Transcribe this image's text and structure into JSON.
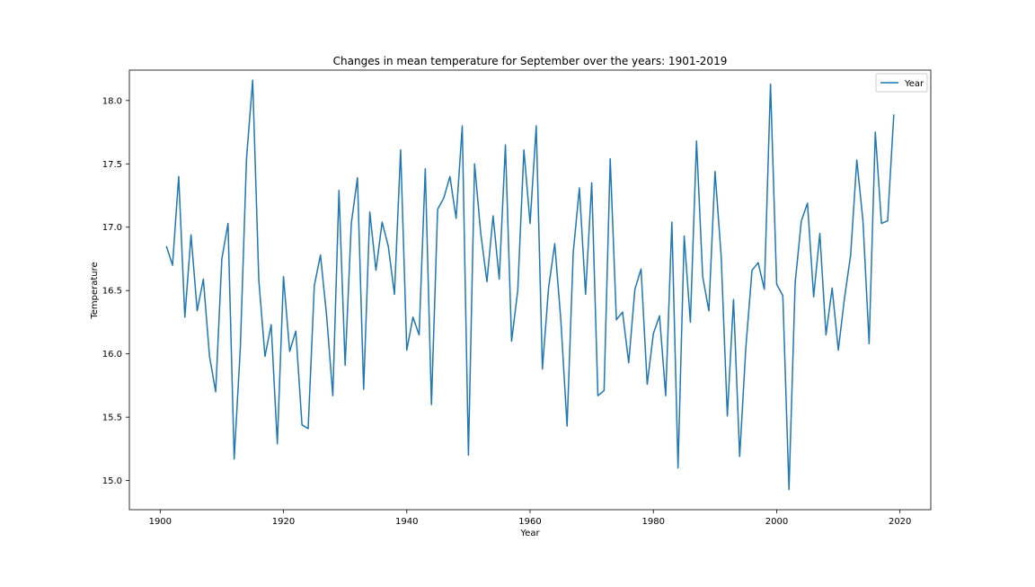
{
  "chart_data": {
    "type": "line",
    "title": "Changes in mean temperature for September over the years: 1901-2019",
    "xlabel": "Year",
    "ylabel": "Temperature",
    "xlim": [
      1895,
      2025
    ],
    "ylim": [
      14.77,
      18.24
    ],
    "xticks": [
      1900,
      1920,
      1940,
      1960,
      1980,
      2000,
      2020
    ],
    "xtick_labels": [
      "1900",
      "1920",
      "1940",
      "1960",
      "1980",
      "2000",
      "2020"
    ],
    "yticks": [
      15.0,
      15.5,
      16.0,
      16.5,
      17.0,
      17.5,
      18.0
    ],
    "ytick_labels": [
      "15.0",
      "15.5",
      "16.0",
      "16.5",
      "17.0",
      "17.5",
      "18.0"
    ],
    "grid": false,
    "legend_position": "top-right",
    "series": [
      {
        "name": "Year",
        "color": "#1f77b4",
        "x": [
          1901,
          1902,
          1903,
          1904,
          1905,
          1906,
          1907,
          1908,
          1909,
          1910,
          1911,
          1912,
          1913,
          1914,
          1915,
          1916,
          1917,
          1918,
          1919,
          1920,
          1921,
          1922,
          1923,
          1924,
          1925,
          1926,
          1927,
          1928,
          1929,
          1930,
          1931,
          1932,
          1933,
          1934,
          1935,
          1936,
          1937,
          1938,
          1939,
          1940,
          1941,
          1942,
          1943,
          1944,
          1945,
          1946,
          1947,
          1948,
          1949,
          1950,
          1951,
          1952,
          1953,
          1954,
          1955,
          1956,
          1957,
          1958,
          1959,
          1960,
          1961,
          1962,
          1963,
          1964,
          1965,
          1966,
          1967,
          1968,
          1969,
          1970,
          1971,
          1972,
          1973,
          1974,
          1975,
          1976,
          1977,
          1978,
          1979,
          1980,
          1981,
          1982,
          1983,
          1984,
          1985,
          1986,
          1987,
          1988,
          1989,
          1990,
          1991,
          1992,
          1993,
          1994,
          1995,
          1996,
          1997,
          1998,
          1999,
          2000,
          2001,
          2002,
          2003,
          2004,
          2005,
          2006,
          2007,
          2008,
          2009,
          2010,
          2011,
          2012,
          2013,
          2014,
          2015,
          2016,
          2017,
          2018,
          2019
        ],
        "y": [
          16.85,
          16.7,
          17.4,
          16.29,
          16.94,
          16.34,
          16.59,
          15.98,
          15.7,
          16.75,
          17.03,
          15.17,
          16.05,
          17.54,
          18.16,
          16.58,
          15.98,
          16.23,
          15.29,
          16.61,
          16.02,
          16.18,
          15.44,
          15.41,
          16.54,
          16.78,
          16.3,
          15.67,
          17.29,
          15.91,
          17.03,
          17.39,
          15.72,
          17.12,
          16.66,
          17.04,
          16.85,
          16.47,
          17.61,
          16.03,
          16.29,
          16.15,
          17.46,
          15.6,
          17.14,
          17.23,
          17.4,
          17.07,
          17.8,
          15.2,
          17.5,
          16.95,
          16.57,
          17.09,
          16.59,
          17.65,
          16.1,
          16.5,
          17.61,
          17.03,
          17.8,
          15.88,
          16.52,
          16.87,
          16.26,
          15.43,
          16.8,
          17.31,
          16.47,
          17.35,
          15.67,
          15.71,
          17.54,
          16.27,
          16.33,
          15.93,
          16.51,
          16.67,
          15.76,
          16.16,
          16.3,
          15.67,
          17.04,
          15.1,
          16.93,
          16.25,
          17.68,
          16.61,
          16.34,
          17.44,
          16.77,
          15.51,
          16.43,
          15.19,
          16.05,
          16.66,
          16.72,
          16.51,
          18.13,
          16.55,
          16.46,
          14.93,
          16.56,
          17.05,
          17.19,
          16.45,
          16.95,
          16.15,
          16.52,
          16.03,
          16.44,
          16.78,
          17.53,
          17.05,
          16.08,
          17.75,
          17.03,
          17.05,
          17.89
        ]
      }
    ]
  }
}
